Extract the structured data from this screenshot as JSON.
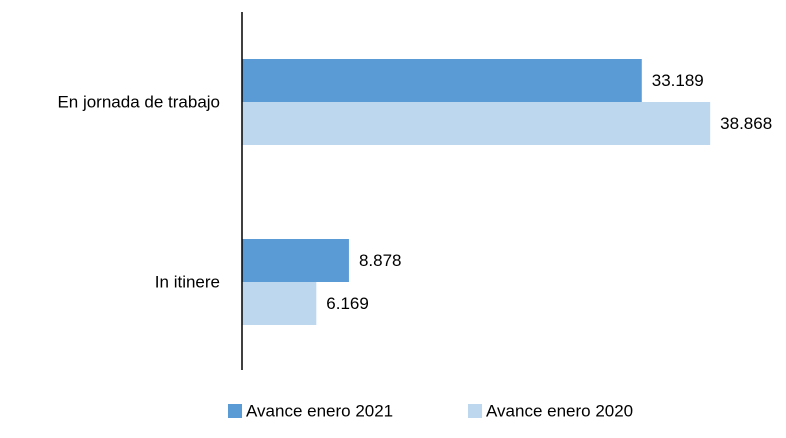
{
  "chart_data": {
    "type": "bar",
    "orientation": "horizontal",
    "title": "",
    "xlabel": "",
    "ylabel": "",
    "categories": [
      "En jornada de trabajo",
      "In itinere"
    ],
    "series": [
      {
        "name": "Avance enero 2021",
        "color": "#5b9bd5",
        "values": [
          33189,
          8878
        ],
        "value_labels": [
          "33.189",
          "8.878"
        ]
      },
      {
        "name": "Avance enero 2020",
        "color": "#bdd7ee",
        "values": [
          38868,
          6169
        ],
        "value_labels": [
          "38.868",
          "6.169"
        ]
      }
    ],
    "xlim": [
      0,
      44000
    ],
    "grid": false,
    "legend_position": "bottom"
  }
}
